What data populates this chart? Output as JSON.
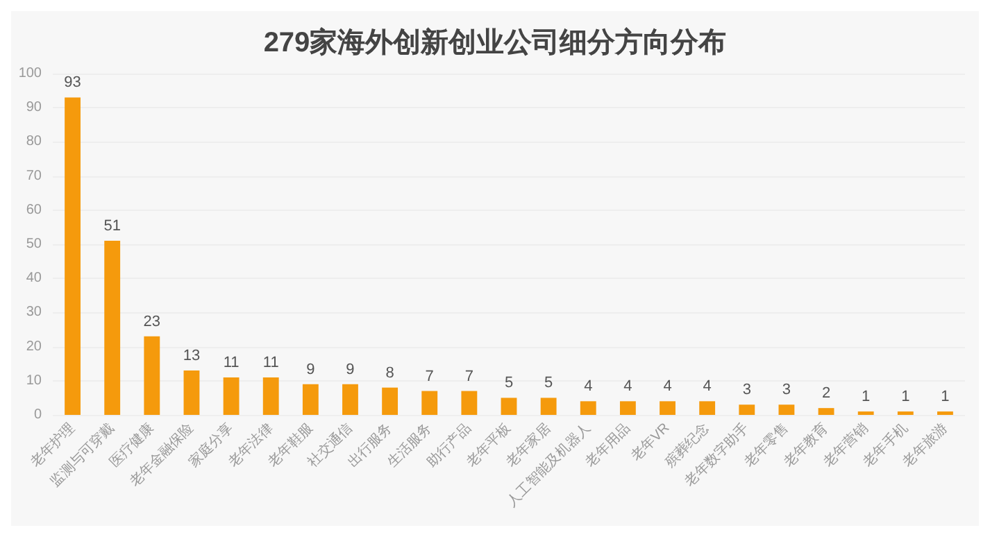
{
  "chart_data": {
    "type": "bar",
    "title": "279家海外创新创业公司细分方向分布",
    "categories": [
      "老年护理",
      "监测与可穿戴",
      "医疗健康",
      "老年金融保险",
      "家庭分享",
      "老年法律",
      "老年鞋服",
      "社交通信",
      "出行服务",
      "生活服务",
      "助行产品",
      "老年平板",
      "老年家居",
      "人工智能及机器人",
      "老年用品",
      "老年VR",
      "殡葬纪念",
      "老年数字助手",
      "老年零售",
      "老年教育",
      "老年营销",
      "老年手机",
      "老年旅游"
    ],
    "values": [
      93,
      51,
      23,
      13,
      11,
      11,
      9,
      9,
      8,
      7,
      7,
      5,
      5,
      4,
      4,
      4,
      4,
      3,
      3,
      2,
      1,
      1,
      1
    ],
    "color": "#f59a0c",
    "ylim": [
      0,
      100
    ],
    "yticks": [
      0,
      10,
      20,
      30,
      40,
      50,
      60,
      70,
      80,
      90,
      100
    ],
    "grid": "y",
    "data_labels": true
  }
}
